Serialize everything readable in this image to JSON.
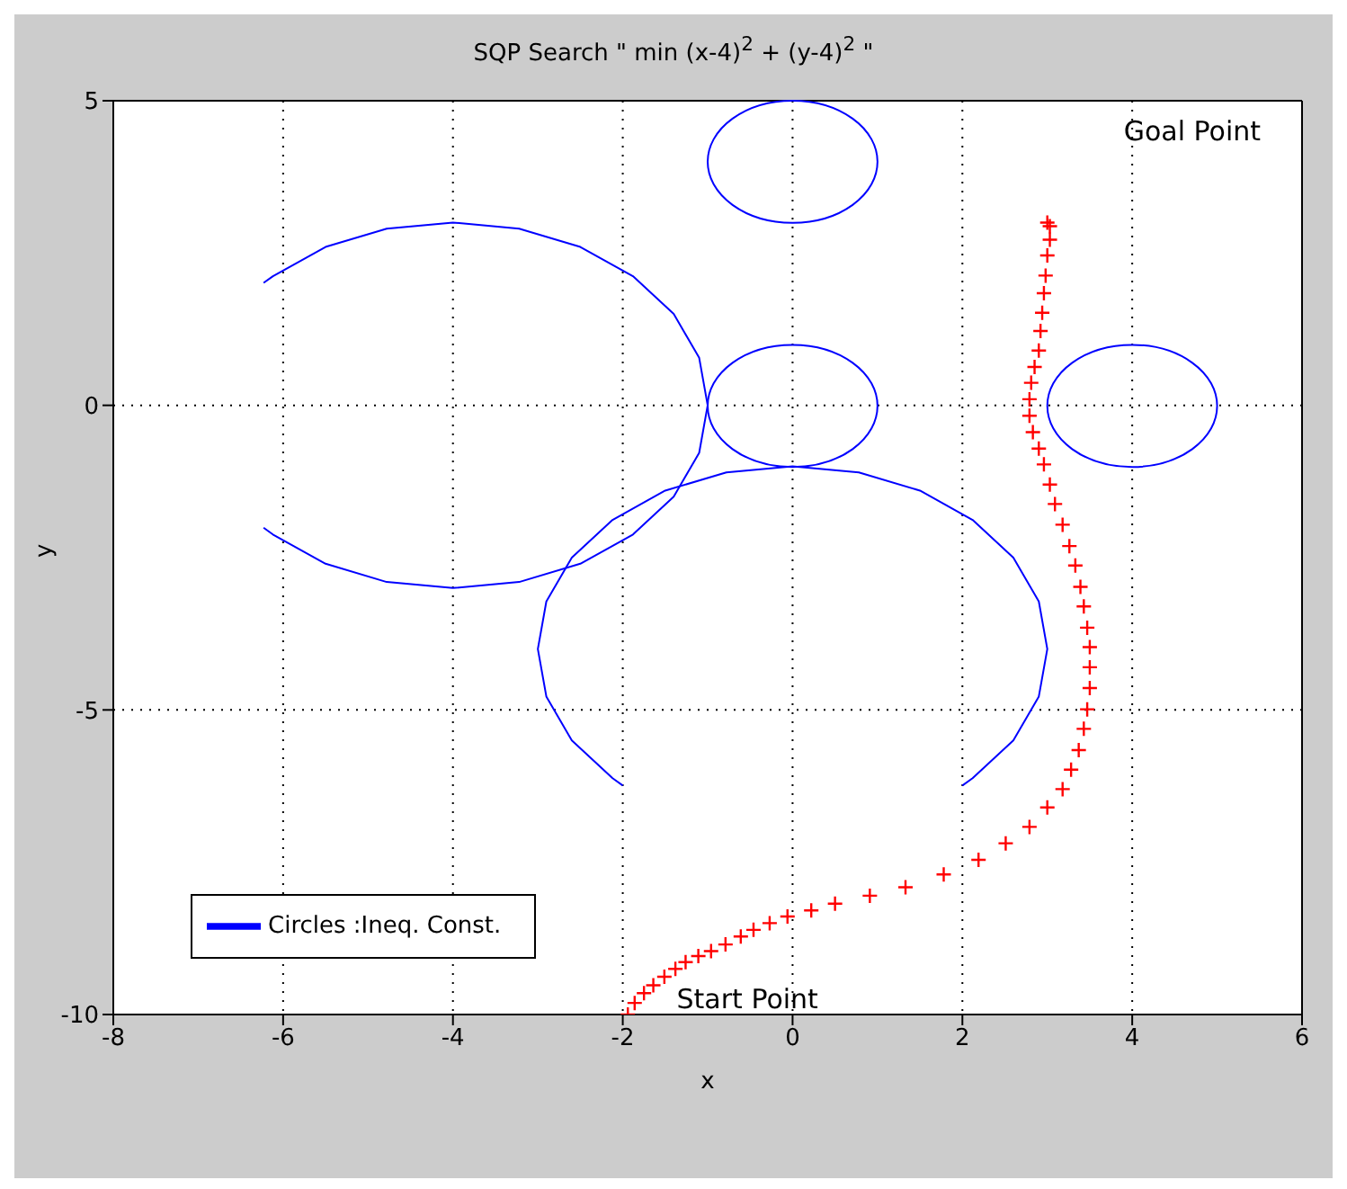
{
  "chart_data": {
    "type": "line",
    "title": "SQP Search \" min (x-4)$^{2}$ + (y-4)$^{2}$ \"",
    "xlabel": "x",
    "ylabel": "y",
    "xlim": [
      -8,
      6
    ],
    "xticks": [
      -8,
      -6,
      -4,
      -2,
      0,
      2,
      4,
      6
    ],
    "ylim": [
      -10,
      5
    ],
    "yticks": [
      -10,
      -5,
      0,
      5
    ],
    "grid": true,
    "legend": "bottom left",
    "line_style": "solid",
    "marker": "none",
    "series": [
      {
        "name": "Circles :Ineq. Const.",
        "color": "#0000ff",
        "x": [
          -6.23,
          -6.12,
          -5.5,
          -4.78,
          -4,
          -3.22,
          -2.5,
          -1.88,
          -1.4,
          -1.1,
          -1,
          -1.1,
          -1.4,
          -1.88,
          -2.5,
          -3.22,
          -4,
          -4.78,
          -5.5,
          -6.12,
          -6.23
        ],
        "values": [
          2.01,
          2.12,
          2.6,
          2.9,
          3,
          2.9,
          2.6,
          2.12,
          1.5,
          0.78,
          0,
          -0.78,
          -1.5,
          -2.12,
          -2.6,
          -2.9,
          -3,
          -2.9,
          -2.6,
          -2.12,
          -2.01
        ]
      },
      {
        "color": "#0000ff",
        "x": [
          -2,
          -2.12,
          -2.6,
          -2.9,
          -3,
          -2.9,
          -2.6,
          -2.12,
          -1.5,
          -0.78,
          0,
          0.78,
          1.5,
          2.12,
          2.6,
          2.9,
          3,
          2.9,
          2.6,
          2.12,
          2
        ],
        "values": [
          -6.24,
          -6.12,
          -5.5,
          -4.78,
          -4,
          -3.22,
          -2.5,
          -1.88,
          -1.4,
          -1.1,
          -1,
          -1.1,
          -1.4,
          -1.88,
          -2.5,
          -3.22,
          -4,
          -4.78,
          -5.5,
          -6.12,
          -6.24
        ]
      },
      {
        "type": "scatter",
        "marker": "cross",
        "color": "#ff0000",
        "x": [
          -1.94,
          -1.86,
          -1.75,
          -1.64,
          -1.51,
          -1.38,
          -1.26,
          -1.11,
          -0.96,
          -0.79,
          -0.61,
          -0.46,
          -0.27,
          -0.06,
          0.22,
          0.5,
          0.91,
          1.33,
          1.78,
          2.19,
          2.51,
          2.79,
          3.0,
          3.18,
          3.28,
          3.37,
          3.43,
          3.47,
          3.5,
          3.5,
          3.5,
          3.47,
          3.43,
          3.39,
          3.33,
          3.26,
          3.18,
          3.09,
          3.03,
          2.96,
          2.9,
          2.83,
          2.79,
          2.79,
          2.81,
          2.85,
          2.9,
          2.92,
          2.94,
          2.96,
          2.98,
          3.0,
          3.03,
          3.03,
          3.0
        ],
        "values": [
          -10,
          -9.81,
          -9.65,
          -9.52,
          -9.38,
          -9.25,
          -9.14,
          -9.04,
          -8.96,
          -8.85,
          -8.72,
          -8.61,
          -8.5,
          -8.39,
          -8.29,
          -8.18,
          -8.05,
          -7.91,
          -7.7,
          -7.46,
          -7.19,
          -6.92,
          -6.6,
          -6.3,
          -5.98,
          -5.66,
          -5.31,
          -4.99,
          -4.64,
          -4.3,
          -3.97,
          -3.65,
          -3.3,
          -2.98,
          -2.63,
          -2.31,
          -1.96,
          -1.62,
          -1.3,
          -0.97,
          -0.71,
          -0.44,
          -0.17,
          0.1,
          0.37,
          0.63,
          0.9,
          1.22,
          1.52,
          1.84,
          2.13,
          2.46,
          2.72,
          2.94,
          3
        ]
      }
    ],
    "annotations": [
      "Goal Point",
      {
        "text": "Start Point",
        "x": -2,
        "y": -10
      }
    ]
  }
}
